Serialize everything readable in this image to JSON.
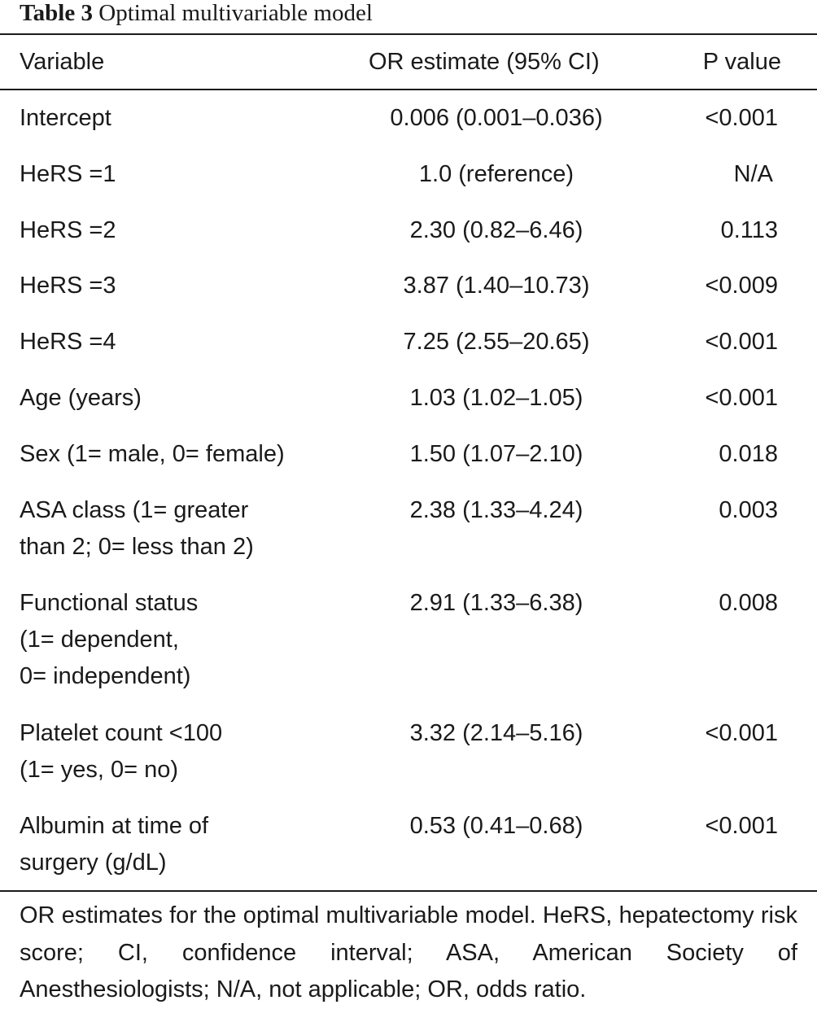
{
  "caption": {
    "label": "Table 3",
    "title": "Optimal multivariable model"
  },
  "columns": {
    "variable": "Variable",
    "or_estimate": "OR estimate (95% CI)",
    "p_value": "P value"
  },
  "rows": [
    {
      "variable": "Intercept",
      "or": "0.006 (0.001–0.036)",
      "p": "<0.001"
    },
    {
      "variable": "HeRS =1",
      "or": "1.0 (reference)",
      "p": "N/A"
    },
    {
      "variable": "HeRS =2",
      "or": "2.30 (0.82–6.46)",
      "p": "0.113"
    },
    {
      "variable": "HeRS =3",
      "or": "3.87 (1.40–10.73)",
      "p": "<0.009"
    },
    {
      "variable": "HeRS =4",
      "or": "7.25 (2.55–20.65)",
      "p": "<0.001"
    },
    {
      "variable": "Age (years)",
      "or": "1.03 (1.02–1.05)",
      "p": "<0.001"
    },
    {
      "variable": "Sex (1= male, 0= female)",
      "or": "1.50 (1.07–2.10)",
      "p": "0.018"
    },
    {
      "variable": "ASA class (1= greater\nthan 2; 0= less than 2)",
      "or": "2.38 (1.33–4.24)",
      "p": "0.003"
    },
    {
      "variable": "Functional status\n(1= dependent,\n0= independent)",
      "or": "2.91 (1.33–6.38)",
      "p": "0.008"
    },
    {
      "variable": "Platelet count <100\n(1= yes, 0= no)",
      "or": "3.32 (2.14–5.16)",
      "p": "<0.001"
    },
    {
      "variable": "Albumin at time of\nsurgery (g/dL)",
      "or": "0.53 (0.41–0.68)",
      "p": "<0.001"
    }
  ],
  "footnote": "OR estimates for the optimal multivariable model. HeRS, hepatectomy risk score; CI, confidence interval; ASA, American Society of Anesthesiologists; N/A, not applicable; OR, odds ratio."
}
